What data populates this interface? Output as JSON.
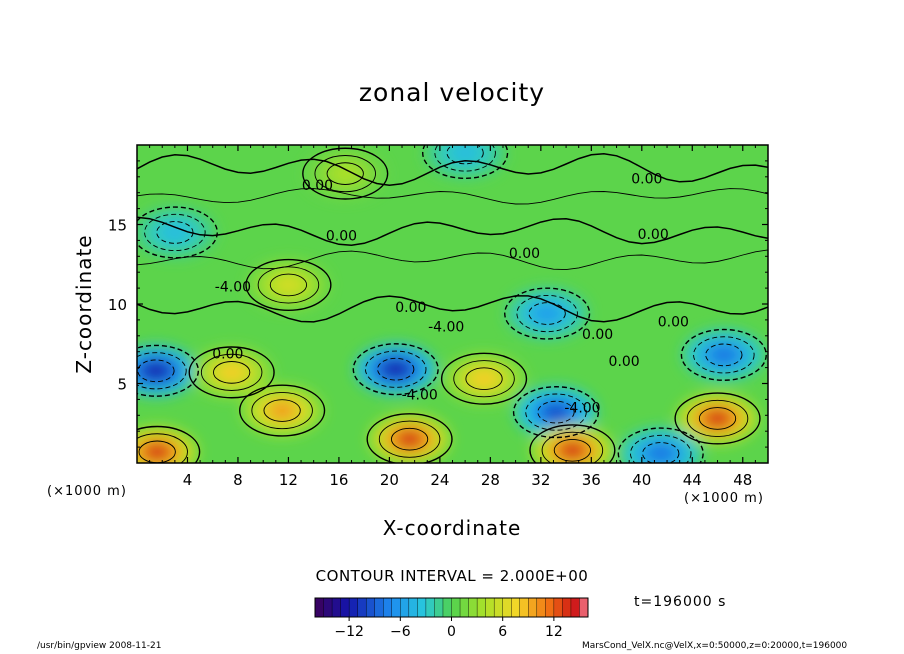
{
  "chart_data": {
    "type": "heatmap",
    "title": "zonal velocity",
    "xlabel": "X-coordinate",
    "ylabel": "Z-coordinate",
    "x_unit_left": "(×1000 m)",
    "x_unit_right": "(×1000 m)",
    "xlim": [
      0,
      50
    ],
    "ylim": [
      0,
      20
    ],
    "x_ticks": [
      4,
      8,
      12,
      16,
      20,
      24,
      28,
      32,
      36,
      40,
      44,
      48
    ],
    "y_ticks": [
      5,
      10,
      15
    ],
    "contour_interval_label": "CONTOUR INTERVAL = 2.000E+00",
    "colorbar": {
      "min": -16,
      "max": 16,
      "ticks": [
        -12,
        -6,
        0,
        6,
        12
      ]
    },
    "contour_labels": [
      {
        "text": "0.00",
        "x": 14.3,
        "y": 17.5
      },
      {
        "text": "0.00",
        "x": 40.4,
        "y": 17.9
      },
      {
        "text": "0.00",
        "x": 16.2,
        "y": 14.3
      },
      {
        "text": "0.00",
        "x": 40.9,
        "y": 14.4
      },
      {
        "text": "0.00",
        "x": 30.7,
        "y": 13.2
      },
      {
        "text": "-4.00",
        "x": 7.6,
        "y": 11.1
      },
      {
        "text": "0.00",
        "x": 21.7,
        "y": 9.8
      },
      {
        "text": "-4.00",
        "x": 24.5,
        "y": 8.6
      },
      {
        "text": "0.00",
        "x": 36.5,
        "y": 8.1
      },
      {
        "text": "0.00",
        "x": 42.5,
        "y": 8.9
      },
      {
        "text": "0.00",
        "x": 7.2,
        "y": 6.9
      },
      {
        "text": "0.00",
        "x": 38.6,
        "y": 6.4
      },
      {
        "text": "-4.00",
        "x": 22.4,
        "y": 4.3
      },
      {
        "text": "-4.00",
        "x": 35.3,
        "y": 3.5
      }
    ],
    "features": [
      {
        "x": 1.5,
        "z": 5.8,
        "value": -12
      },
      {
        "x": 7.5,
        "z": 5.7,
        "value": 8
      },
      {
        "x": 11.5,
        "z": 3.3,
        "value": 10
      },
      {
        "x": 1.6,
        "z": 0.7,
        "value": 14
      },
      {
        "x": 20.5,
        "z": 5.9,
        "value": -12
      },
      {
        "x": 21.6,
        "z": 1.5,
        "value": 14
      },
      {
        "x": 27.5,
        "z": 5.3,
        "value": 8
      },
      {
        "x": 33.2,
        "z": 3.2,
        "value": -10
      },
      {
        "x": 34.5,
        "z": 0.8,
        "value": 14
      },
      {
        "x": 46.0,
        "z": 2.8,
        "value": 14
      },
      {
        "x": 46.5,
        "z": 6.8,
        "value": -8
      },
      {
        "x": 41.5,
        "z": 0.6,
        "value": -8
      },
      {
        "x": 12.0,
        "z": 11.2,
        "value": 6
      },
      {
        "x": 32.5,
        "z": 9.4,
        "value": -6
      },
      {
        "x": 16.5,
        "z": 18.2,
        "value": 4
      },
      {
        "x": 26.0,
        "z": 19.5,
        "value": -4
      },
      {
        "x": 3.0,
        "z": 14.5,
        "value": -4
      }
    ]
  },
  "labels": {
    "time": "t=196000 s",
    "footer_left": "/usr/bin/gpview 2008-11-21",
    "footer_right": "MarsCond_VelX.nc@VelX,x=0:50000,z=0:20000,t=196000"
  }
}
